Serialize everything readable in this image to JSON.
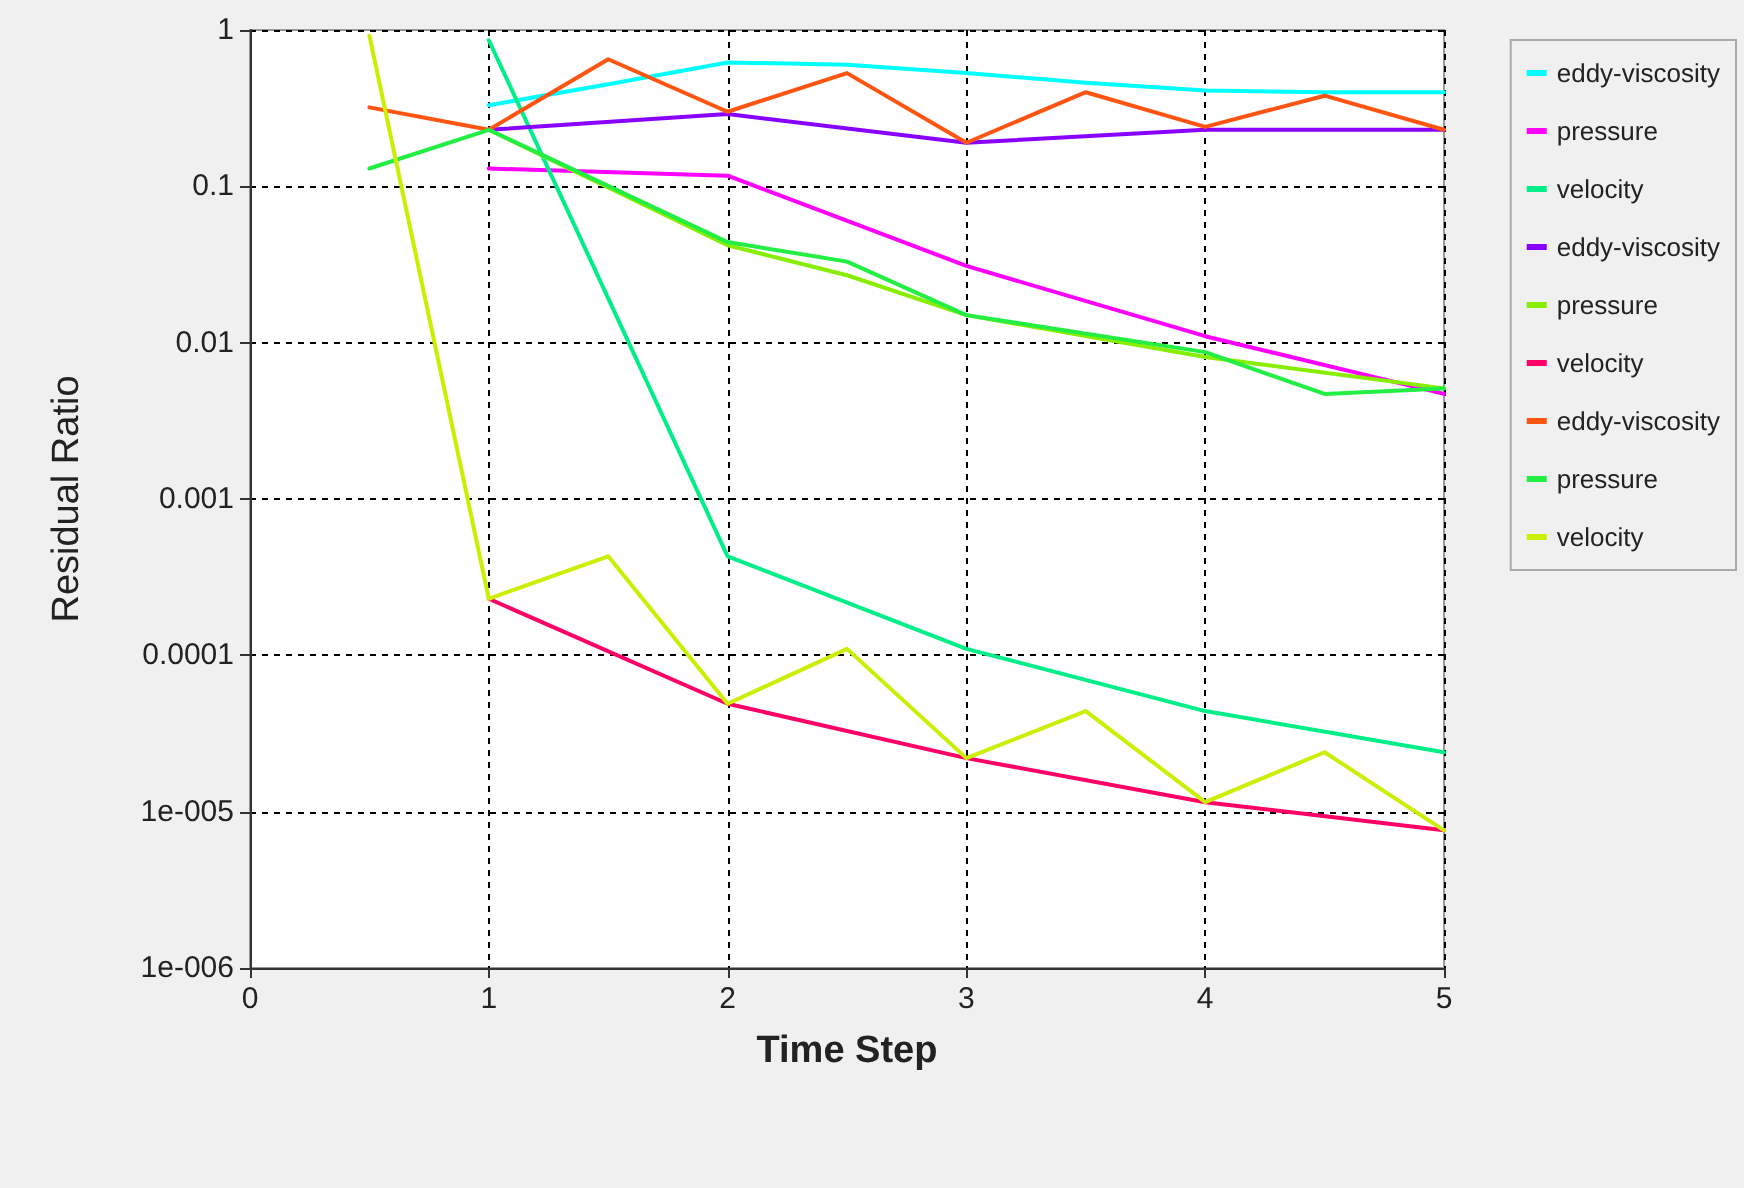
{
  "chart_data": {
    "type": "line",
    "xlabel": "Time Step",
    "ylabel": "Residual Ratio",
    "xlim": [
      0,
      5
    ],
    "xticks": [
      0,
      1,
      2,
      3,
      4,
      5
    ],
    "ylim": [
      1e-06,
      1
    ],
    "yticks": [
      {
        "value": 1e-06,
        "label": "1e-006"
      },
      {
        "value": 1e-05,
        "label": "1e-005"
      },
      {
        "value": 0.0001,
        "label": "0.0001"
      },
      {
        "value": 0.001,
        "label": "0.001"
      },
      {
        "value": 0.01,
        "label": "0.01"
      },
      {
        "value": 0.1,
        "label": "0.1"
      },
      {
        "value": 1,
        "label": "1"
      }
    ],
    "log": "y",
    "grid": true,
    "legend": "right",
    "marker": "none",
    "line_style": "solid",
    "series": [
      {
        "name": "eddy-viscosity",
        "color": "#00ffff",
        "x": [
          1,
          1.5,
          2,
          2.5,
          3,
          3.5,
          4,
          4.5,
          5
        ],
        "values": [
          0.33,
          0.45,
          0.62,
          0.6,
          0.53,
          0.46,
          0.41,
          0.4,
          0.4
        ]
      },
      {
        "name": "pressure",
        "color": "#ff00ff",
        "x": [
          1,
          2,
          3,
          4,
          5
        ],
        "values": [
          0.13,
          0.117,
          0.031,
          0.011,
          0.0047
        ]
      },
      {
        "name": "velocity",
        "color": "#00ee88",
        "x": [
          1,
          2,
          3,
          4,
          5
        ],
        "values": [
          0.86,
          0.00043,
          0.00011,
          4.4e-05,
          2.4e-05
        ]
      },
      {
        "name": "eddy-viscosity",
        "color": "#8800ff",
        "x": [
          1,
          2,
          3,
          4,
          5
        ],
        "values": [
          0.23,
          0.29,
          0.19,
          0.23,
          0.23
        ]
      },
      {
        "name": "pressure",
        "color": "#88ee00",
        "x": [
          1,
          2,
          2.5,
          3,
          4,
          5
        ],
        "values": [
          0.23,
          0.042,
          0.027,
          0.015,
          0.0081,
          0.0051
        ]
      },
      {
        "name": "velocity",
        "color": "#ff0066",
        "x": [
          1,
          2,
          3,
          4,
          5
        ],
        "values": [
          0.00023,
          4.9e-05,
          2.2e-05,
          1.15e-05,
          7.6e-06
        ]
      },
      {
        "name": "eddy-viscosity",
        "color": "#ff5511",
        "x": [
          0.5,
          1,
          1.5,
          2,
          2.5,
          3,
          3.5,
          4,
          4.5,
          5
        ],
        "values": [
          0.32,
          0.23,
          0.65,
          0.3,
          0.53,
          0.19,
          0.4,
          0.24,
          0.38,
          0.23
        ]
      },
      {
        "name": "pressure",
        "color": "#22ee44",
        "x": [
          0.5,
          1,
          2,
          2.5,
          3,
          4,
          4.5,
          5
        ],
        "values": [
          0.13,
          0.23,
          0.044,
          0.033,
          0.015,
          0.0087,
          0.0047,
          0.0051
        ]
      },
      {
        "name": "velocity",
        "color": "#ccee00",
        "x": [
          0.5,
          1,
          1.5,
          2,
          2.5,
          3,
          3.5,
          4,
          4.5,
          5
        ],
        "values": [
          0.92,
          0.00023,
          0.00043,
          4.9e-05,
          0.00011,
          2.2e-05,
          4.4e-05,
          1.15e-05,
          2.4e-05,
          7.6e-06
        ]
      }
    ]
  }
}
